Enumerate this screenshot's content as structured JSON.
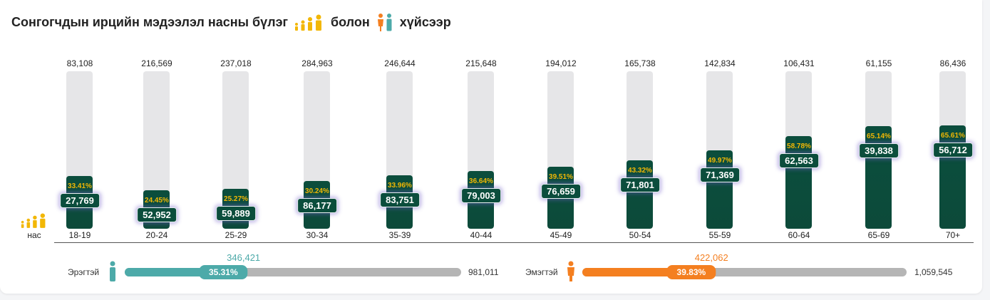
{
  "title": {
    "part1": "Сонгогчдын ирцийн мэдээлэл насны бүлэг",
    "part2": "болон",
    "part3": "хүйсээр"
  },
  "axis_icon_label": "нас",
  "colors": {
    "fill": "#0b4d3c",
    "pct": "#f2b705",
    "male": "#4daaa9",
    "female": "#f47f20",
    "track": "#e6e6e8"
  },
  "chart_data": {
    "type": "bar",
    "title": "Сонгогчдын ирцийн мэдээлэл насны бүлэг болон хүйсээр",
    "categories": [
      "18-19",
      "20-24",
      "25-29",
      "30-34",
      "35-39",
      "40-44",
      "45-49",
      "50-54",
      "55-59",
      "60-64",
      "65-69",
      "70+"
    ],
    "totals": [
      "83,108",
      "216,569",
      "237,018",
      "284,963",
      "246,644",
      "215,648",
      "194,012",
      "165,738",
      "142,834",
      "106,431",
      "61,155",
      "86,436"
    ],
    "turnout": [
      "27,769",
      "52,952",
      "59,889",
      "86,177",
      "83,751",
      "79,003",
      "76,659",
      "71,801",
      "71,369",
      "62,563",
      "39,838",
      "56,712"
    ],
    "percent_labels": [
      "33.41%",
      "24.45%",
      "25.27%",
      "30.24%",
      "33.96%",
      "36.64%",
      "39.51%",
      "43.32%",
      "49.97%",
      "58.78%",
      "65.14%",
      "65.61%"
    ],
    "percent_values": [
      33.41,
      24.45,
      25.27,
      30.24,
      33.96,
      36.64,
      39.51,
      43.32,
      49.97,
      58.78,
      65.14,
      65.61
    ],
    "ylim": [
      0,
      100
    ]
  },
  "gender": {
    "male": {
      "label": "Эрэгтэй",
      "voted": "346,421",
      "percent": "35.31%",
      "percent_value": 35.31,
      "total": "981,011"
    },
    "female": {
      "label": "Эмэгтэй",
      "voted": "422,062",
      "percent": "39.83%",
      "percent_value": 39.83,
      "total": "1,059,545"
    }
  }
}
